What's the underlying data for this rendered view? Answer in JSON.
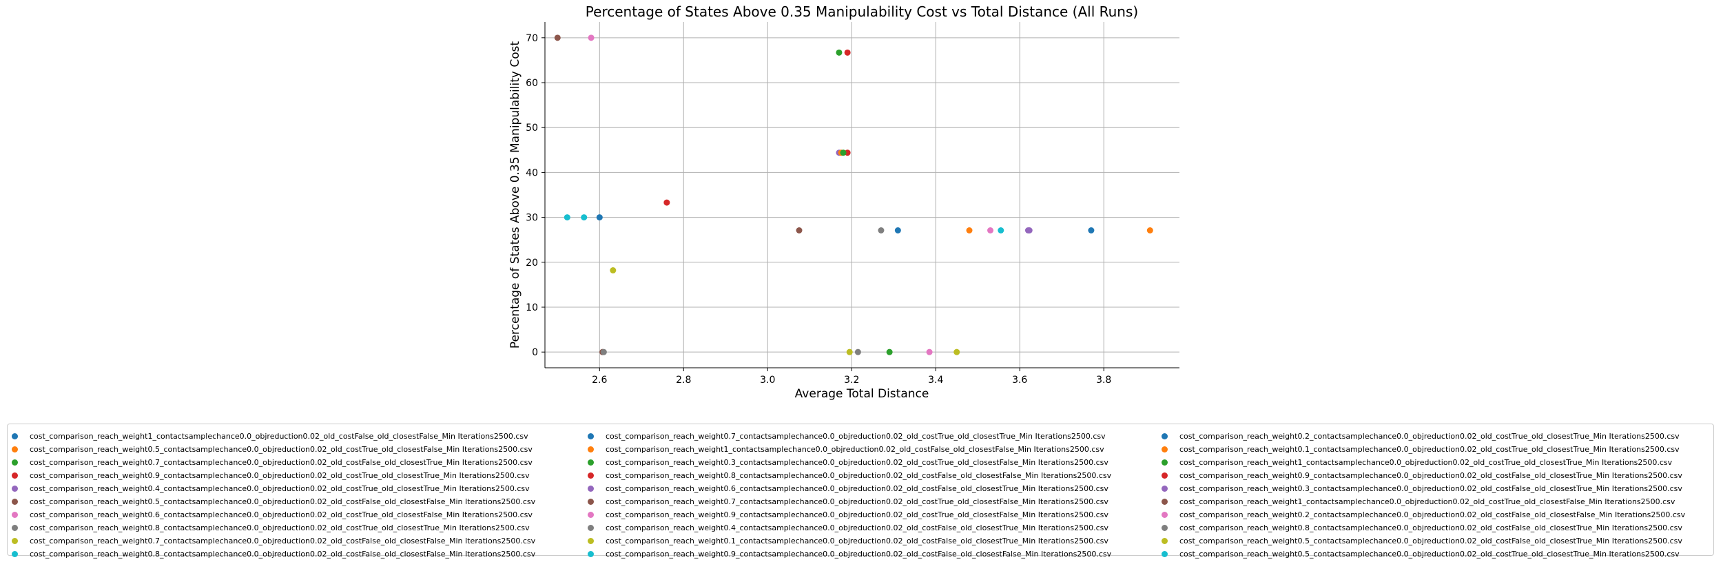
{
  "chart_data": {
    "type": "scatter",
    "title": "Percentage of States Above 0.35 Manipulability Cost vs Total Distance (All Runs)",
    "xlabel": "Average Total Distance",
    "ylabel": "Percentage of States Above 0.35 Manipulability Cost",
    "xlim": [
      2.47,
      3.98
    ],
    "ylim": [
      -3.5,
      73.5
    ],
    "xticks": [
      2.6,
      2.8,
      3.0,
      3.2,
      3.4,
      3.6,
      3.8
    ],
    "xtick_labels": [
      "2.6",
      "2.8",
      "3.0",
      "3.2",
      "3.4",
      "3.6",
      "3.8"
    ],
    "yticks": [
      0,
      10,
      20,
      30,
      40,
      50,
      60,
      70
    ],
    "ytick_labels": [
      "0",
      "10",
      "20",
      "30",
      "40",
      "50",
      "60",
      "70"
    ],
    "grid": true,
    "legend_position": "bottom",
    "series": [
      {
        "name": "cost_comparison_reach_weight1_contactsamplechance0.0_objreduction0.02_old_costFalse_old_closestFalse_Min Iterations2500.csv",
        "color": "#1f77b4",
        "x": [
          3.31
        ],
        "y": [
          27.1
        ]
      },
      {
        "name": "cost_comparison_reach_weight0.5_contactsamplechance0.0_objreduction0.02_old_costTrue_old_closestFalse_Min Iterations2500.csv",
        "color": "#ff7f0e",
        "x": [
          3.48
        ],
        "y": [
          27.1
        ]
      },
      {
        "name": "cost_comparison_reach_weight0.7_contactsamplechance0.0_objreduction0.02_old_costFalse_old_closestTrue_Min Iterations2500.csv",
        "color": "#2ca02c",
        "x": [
          3.17
        ],
        "y": [
          66.7
        ]
      },
      {
        "name": "cost_comparison_reach_weight0.9_contactsamplechance0.0_objreduction0.02_old_costTrue_old_closestTrue_Min Iterations2500.csv",
        "color": "#d62728",
        "x": [
          2.76
        ],
        "y": [
          33.3
        ]
      },
      {
        "name": "cost_comparison_reach_weight0.4_contactsamplechance0.0_objreduction0.02_old_costTrue_old_closestTrue_Min Iterations2500.csv",
        "color": "#9467bd",
        "x": [
          3.62
        ],
        "y": [
          27.1
        ]
      },
      {
        "name": "cost_comparison_reach_weight0.5_contactsamplechance0.0_objreduction0.02_old_costFalse_old_closestFalse_Min Iterations2500.csv",
        "color": "#8c564b",
        "x": [
          3.075
        ],
        "y": [
          27.1
        ]
      },
      {
        "name": "cost_comparison_reach_weight0.6_contactsamplechance0.0_objreduction0.02_old_costTrue_old_closestFalse_Min Iterations2500.csv",
        "color": "#e377c2",
        "x": [
          3.53
        ],
        "y": [
          27.1
        ]
      },
      {
        "name": "cost_comparison_reach_weight0.8_contactsamplechance0.0_objreduction0.02_old_costTrue_old_closestTrue_Min Iterations2500.csv",
        "color": "#7f7f7f",
        "x": [
          3.27
        ],
        "y": [
          27.1
        ]
      },
      {
        "name": "cost_comparison_reach_weight0.7_contactsamplechance0.0_objreduction0.02_old_costFalse_old_closestFalse_Min Iterations2500.csv",
        "color": "#bcbd22",
        "x": [
          3.45
        ],
        "y": [
          0
        ]
      },
      {
        "name": "cost_comparison_reach_weight0.8_contactsamplechance0.0_objreduction0.02_old_costFalse_old_closestFalse_Min Iterations2500.csv",
        "color": "#17becf",
        "x": [
          2.523
        ],
        "y": [
          30.0
        ]
      },
      {
        "name": "cost_comparison_reach_weight0.7_contactsamplechance0.0_objreduction0.02_old_costTrue_old_closestTrue_Min Iterations2500.csv",
        "color": "#1f77b4",
        "x": [
          3.77
        ],
        "y": [
          27.1
        ]
      },
      {
        "name": "cost_comparison_reach_weight1_contactsamplechance0.0_objreduction0.02_old_costFalse_old_closestFalse_Min Iterations2500.csv",
        "color": "#ff7f0e",
        "x": [
          3.91
        ],
        "y": [
          27.1
        ]
      },
      {
        "name": "cost_comparison_reach_weight0.3_contactsamplechance0.0_objreduction0.02_old_costTrue_old_closestFalse_Min Iterations2500.csv",
        "color": "#2ca02c",
        "x": [
          3.29
        ],
        "y": [
          0
        ]
      },
      {
        "name": "cost_comparison_reach_weight0.8_contactsamplechance0.0_objreduction0.02_old_costFalse_old_closestFalse_Min Iterations2500.csv",
        "color": "#d62728",
        "x": [
          3.19
        ],
        "y": [
          44.4
        ]
      },
      {
        "name": "cost_comparison_reach_weight0.6_contactsamplechance0.0_objreduction0.02_old_costFalse_old_closestTrue_Min Iterations2500.csv",
        "color": "#9467bd",
        "x": [
          3.17
        ],
        "y": [
          44.4
        ]
      },
      {
        "name": "cost_comparison_reach_weight0.7_contactsamplechance0.0_objreduction0.02_old_costTrue_old_closestFalse_Min Iterations2500.csv",
        "color": "#8c564b",
        "x": [
          2.607
        ],
        "y": [
          0
        ]
      },
      {
        "name": "cost_comparison_reach_weight0.9_contactsamplechance0.0_objreduction0.02_old_costTrue_old_closestFalse_Min Iterations2500.csv",
        "color": "#e377c2",
        "x": [
          3.385
        ],
        "y": [
          0
        ]
      },
      {
        "name": "cost_comparison_reach_weight0.4_contactsamplechance0.0_objreduction0.02_old_costFalse_old_closestTrue_Min Iterations2500.csv",
        "color": "#7f7f7f",
        "x": [
          3.215
        ],
        "y": [
          0
        ]
      },
      {
        "name": "cost_comparison_reach_weight0.1_contactsamplechance0.0_objreduction0.02_old_costFalse_old_closestTrue_Min Iterations2500.csv",
        "color": "#bcbd22",
        "x": [
          3.195
        ],
        "y": [
          0
        ]
      },
      {
        "name": "cost_comparison_reach_weight0.9_contactsamplechance0.0_objreduction0.02_old_costFalse_old_closestFalse_Min Iterations2500.csv",
        "color": "#17becf",
        "x": [
          2.563
        ],
        "y": [
          30.0
        ]
      },
      {
        "name": "cost_comparison_reach_weight0.2_contactsamplechance0.0_objreduction0.02_old_costTrue_old_closestTrue_Min Iterations2500.csv",
        "color": "#1f77b4",
        "x": [
          2.6
        ],
        "y": [
          30.0
        ]
      },
      {
        "name": "cost_comparison_reach_weight0.1_contactsamplechance0.0_objreduction0.02_old_costTrue_old_closestTrue_Min Iterations2500.csv",
        "color": "#ff7f0e",
        "x": [
          3.175
        ],
        "y": [
          44.4
        ]
      },
      {
        "name": "cost_comparison_reach_weight1_contactsamplechance0.0_objreduction0.02_old_costTrue_old_closestTrue_Min Iterations2500.csv",
        "color": "#2ca02c",
        "x": [
          3.18
        ],
        "y": [
          44.4
        ]
      },
      {
        "name": "cost_comparison_reach_weight0.9_contactsamplechance0.0_objreduction0.02_old_costFalse_old_closestTrue_Min Iterations2500.csv",
        "color": "#d62728",
        "x": [
          3.19
        ],
        "y": [
          66.7
        ]
      },
      {
        "name": "cost_comparison_reach_weight0.3_contactsamplechance0.0_objreduction0.02_old_costFalse_old_closestTrue_Min Iterations2500.csv",
        "color": "#9467bd",
        "x": [
          3.623
        ],
        "y": [
          27.1
        ]
      },
      {
        "name": "cost_comparison_reach_weight1_contactsamplechance0.0_objreduction0.02_old_costTrue_old_closestFalse_Min Iterations2500.csv",
        "color": "#8c564b",
        "x": [
          2.5
        ],
        "y": [
          70.0
        ]
      },
      {
        "name": "cost_comparison_reach_weight0.2_contactsamplechance0.0_objreduction0.02_old_costFalse_old_closestFalse_Min Iterations2500.csv",
        "color": "#e377c2",
        "x": [
          2.58
        ],
        "y": [
          70.0
        ]
      },
      {
        "name": "cost_comparison_reach_weight0.8_contactsamplechance0.0_objreduction0.02_old_costFalse_old_closestTrue_Min Iterations2500.csv",
        "color": "#7f7f7f",
        "x": [
          2.61
        ],
        "y": [
          0
        ]
      },
      {
        "name": "cost_comparison_reach_weight0.5_contactsamplechance0.0_objreduction0.02_old_costFalse_old_closestTrue_Min Iterations2500.csv",
        "color": "#bcbd22",
        "x": [
          2.632
        ],
        "y": [
          18.2
        ]
      },
      {
        "name": "cost_comparison_reach_weight0.5_contactsamplechance0.0_objreduction0.02_old_costTrue_old_closestTrue_Min Iterations2500.csv",
        "color": "#17becf",
        "x": [
          3.555
        ],
        "y": [
          27.1
        ]
      }
    ]
  }
}
